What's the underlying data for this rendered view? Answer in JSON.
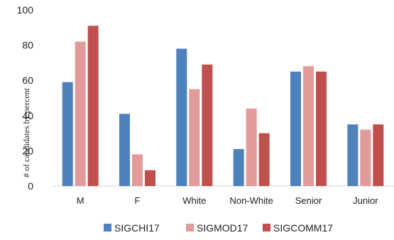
{
  "chart_data": {
    "type": "bar",
    "categories": [
      "M",
      "F",
      "White",
      "Non-White",
      "Senior",
      "Junior"
    ],
    "series": [
      {
        "name": "SIGCHI17",
        "color": "#4F81BD",
        "values": [
          59,
          41,
          78,
          21,
          65,
          35
        ]
      },
      {
        "name": "SIGMOD17",
        "color": "#E29A9A",
        "values": [
          82,
          18,
          55,
          44,
          68,
          32
        ]
      },
      {
        "name": "SIGCOMM17",
        "color": "#C0504D",
        "values": [
          91,
          9,
          69,
          30,
          65,
          35
        ]
      }
    ],
    "ylabel": "# of candidates by percent",
    "xlabel": "",
    "ylim": [
      0,
      100
    ],
    "yticks": [
      0,
      20,
      40,
      60,
      80,
      100
    ],
    "grid": false,
    "legend_position": "bottom"
  }
}
